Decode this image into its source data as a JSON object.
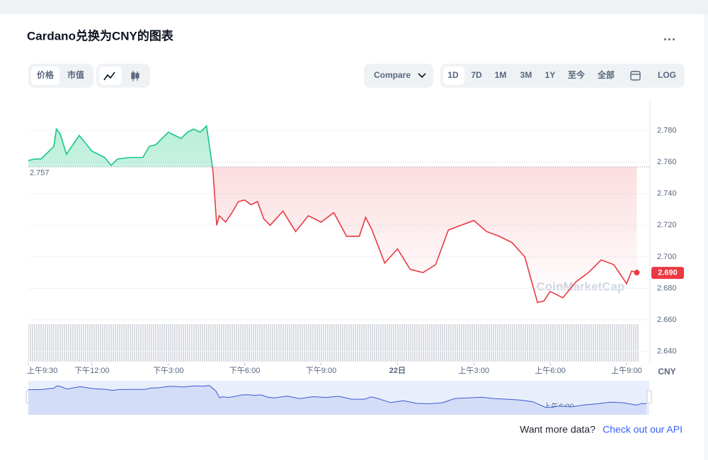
{
  "ui": {
    "tabs": [
      "价格",
      "市值"
    ],
    "compare": "Compare",
    "ranges": [
      "1D",
      "7D",
      "1M",
      "3M",
      "1Y",
      "至今",
      "全部"
    ],
    "log": "LOG",
    "watermark": "CoinMarketCap",
    "currency": "CNY",
    "footer_text": "Want more data?",
    "footer_link": "Check out our API"
  },
  "chart_data": {
    "type": "line",
    "title": "Cardano兑换为CNY的图表",
    "x": [
      9.5,
      9.75,
      10,
      10.5,
      10.6,
      10.75,
      11,
      11.25,
      11.5,
      12,
      12.5,
      12.75,
      13,
      13.5,
      14,
      14.25,
      14.5,
      15,
      15.5,
      15.75,
      16,
      16.25,
      16.5,
      16.75,
      16.9,
      17,
      17.25,
      17.5,
      17.75,
      18,
      18.25,
      18.5,
      18.75,
      19,
      19.5,
      20,
      20.5,
      21,
      21.5,
      22,
      22.5,
      22.75,
      23,
      23.5,
      24,
      24.5,
      25,
      25.5,
      26,
      26.5,
      27,
      27.5,
      28,
      28.5,
      29,
      29.5,
      29.75,
      30,
      30.5,
      31,
      31.5,
      32,
      32.5,
      33,
      33.2,
      33.4
    ],
    "series": [
      {
        "name": "Cardano",
        "color_up": "#16c784",
        "color_down": "#ea3943",
        "values": [
          2.761,
          2.762,
          2.762,
          2.77,
          2.781,
          2.778,
          2.765,
          2.771,
          2.777,
          2.767,
          2.763,
          2.758,
          2.762,
          2.763,
          2.763,
          2.77,
          2.771,
          2.779,
          2.775,
          2.779,
          2.781,
          2.779,
          2.783,
          2.755,
          2.72,
          2.726,
          2.722,
          2.728,
          2.735,
          2.736,
          2.733,
          2.735,
          2.724,
          2.72,
          2.729,
          2.716,
          2.726,
          2.722,
          2.728,
          2.713,
          2.713,
          2.725,
          2.717,
          2.696,
          2.705,
          2.692,
          2.69,
          2.695,
          2.717,
          2.72,
          2.723,
          2.716,
          2.713,
          2.709,
          2.7,
          2.671,
          2.672,
          2.678,
          2.674,
          2.684,
          2.69,
          2.698,
          2.695,
          2.683,
          2.691,
          2.69
        ]
      }
    ],
    "baseline": 2.757,
    "last_label": "2.690",
    "xlim": [
      9.5,
      33.5
    ],
    "xticks": [
      {
        "value": 9.5,
        "label": "上午9:30"
      },
      {
        "value": 12,
        "label": "下午12:00"
      },
      {
        "value": 15,
        "label": "下午3:00"
      },
      {
        "value": 18,
        "label": "下午6:00"
      },
      {
        "value": 21,
        "label": "下午9:00"
      },
      {
        "value": 24,
        "label": "22日"
      },
      {
        "value": 27,
        "label": "上午3:00"
      },
      {
        "value": 30,
        "label": "上午6:00"
      },
      {
        "value": 33,
        "label": "上午9:00"
      }
    ],
    "ylim": [
      2.634,
      2.8
    ],
    "yticks": [
      {
        "value": 2.64,
        "label": "2.640"
      },
      {
        "value": 2.66,
        "label": "2.660"
      },
      {
        "value": 2.68,
        "label": "2.680"
      },
      {
        "value": 2.7,
        "label": "2.700"
      },
      {
        "value": 2.72,
        "label": "2.720"
      },
      {
        "value": 2.74,
        "label": "2.740"
      },
      {
        "value": 2.76,
        "label": "2.760"
      },
      {
        "value": 2.78,
        "label": "2.780"
      }
    ],
    "grid": true
  }
}
